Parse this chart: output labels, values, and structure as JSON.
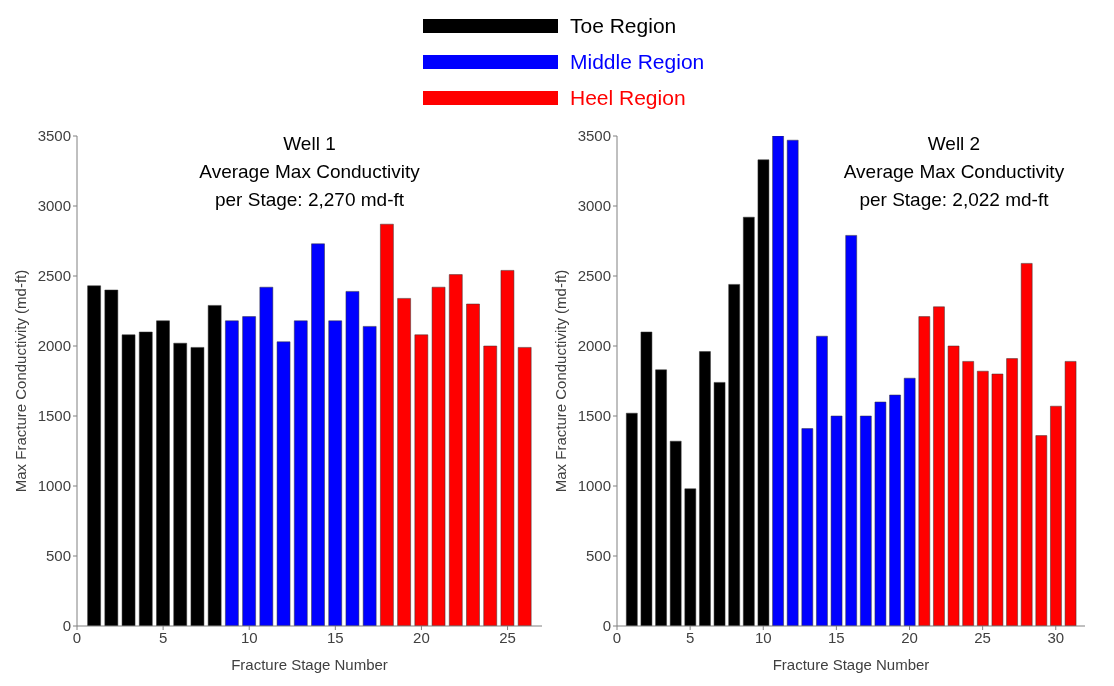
{
  "chart_data": [
    {
      "type": "bar",
      "title": "Well 1\nAverage Max Conductivity\nper Stage: 2,270 md-ft",
      "xlabel": "Fracture Stage Number",
      "ylabel": "Max Fracture Conductivity (md-ft)",
      "xlim": [
        0,
        27
      ],
      "xticks": [
        0,
        5,
        10,
        15,
        20,
        25
      ],
      "ylim": [
        0,
        3500
      ],
      "yticks": [
        0,
        500,
        1000,
        1500,
        2000,
        2500,
        3000,
        3500
      ],
      "grid": false,
      "legend": "top",
      "series": [
        {
          "name": "Toe Region",
          "color": "#000000",
          "x": [
            1,
            2,
            3,
            4,
            5,
            6,
            7,
            8
          ],
          "values": [
            2430,
            2400,
            2080,
            2100,
            2180,
            2020,
            1990,
            2290
          ]
        },
        {
          "name": "Middle Region",
          "color": "#0000ff",
          "x": [
            9,
            10,
            11,
            12,
            13,
            14,
            15,
            16,
            17
          ],
          "values": [
            2180,
            2210,
            2420,
            2030,
            2180,
            2730,
            2180,
            2390,
            2140
          ]
        },
        {
          "name": "Heel Region",
          "color": "#ff0000",
          "x": [
            18,
            19,
            20,
            21,
            22,
            23,
            24,
            25,
            26
          ],
          "values": [
            2870,
            2340,
            2080,
            2420,
            2510,
            2300,
            2000,
            2540,
            1990
          ]
        }
      ]
    },
    {
      "type": "bar",
      "title": "Well 2\nAverage Max Conductivity\nper Stage: 2,022 md-ft",
      "xlabel": "Fracture Stage Number",
      "ylabel": "Max Fracture Conductivity (md-ft)",
      "xlim": [
        0,
        32
      ],
      "xticks": [
        0,
        5,
        10,
        15,
        20,
        25,
        30
      ],
      "ylim": [
        0,
        3500
      ],
      "yticks": [
        0,
        500,
        1000,
        1500,
        2000,
        2500,
        3000,
        3500
      ],
      "grid": false,
      "series": [
        {
          "color": "#000000",
          "x": [
            1,
            2,
            3,
            4,
            5,
            6,
            7,
            8,
            9,
            10
          ],
          "values": [
            1520,
            2100,
            1830,
            1320,
            980,
            1960,
            1740,
            2440,
            2920,
            3330
          ]
        },
        {
          "color": "#0000ff",
          "x": [
            11,
            12,
            13,
            14,
            15,
            16,
            17,
            18,
            19,
            20
          ],
          "values": [
            3500,
            3470,
            1410,
            2070,
            1500,
            2790,
            1500,
            1600,
            1650,
            1770
          ]
        },
        {
          "color": "#ff0000",
          "x": [
            21,
            22,
            23,
            24,
            25,
            26,
            27,
            28,
            29,
            30,
            31
          ],
          "values": [
            2210,
            2280,
            2000,
            1890,
            1820,
            1800,
            1910,
            2590,
            1360,
            1570,
            1890
          ]
        }
      ]
    }
  ]
}
